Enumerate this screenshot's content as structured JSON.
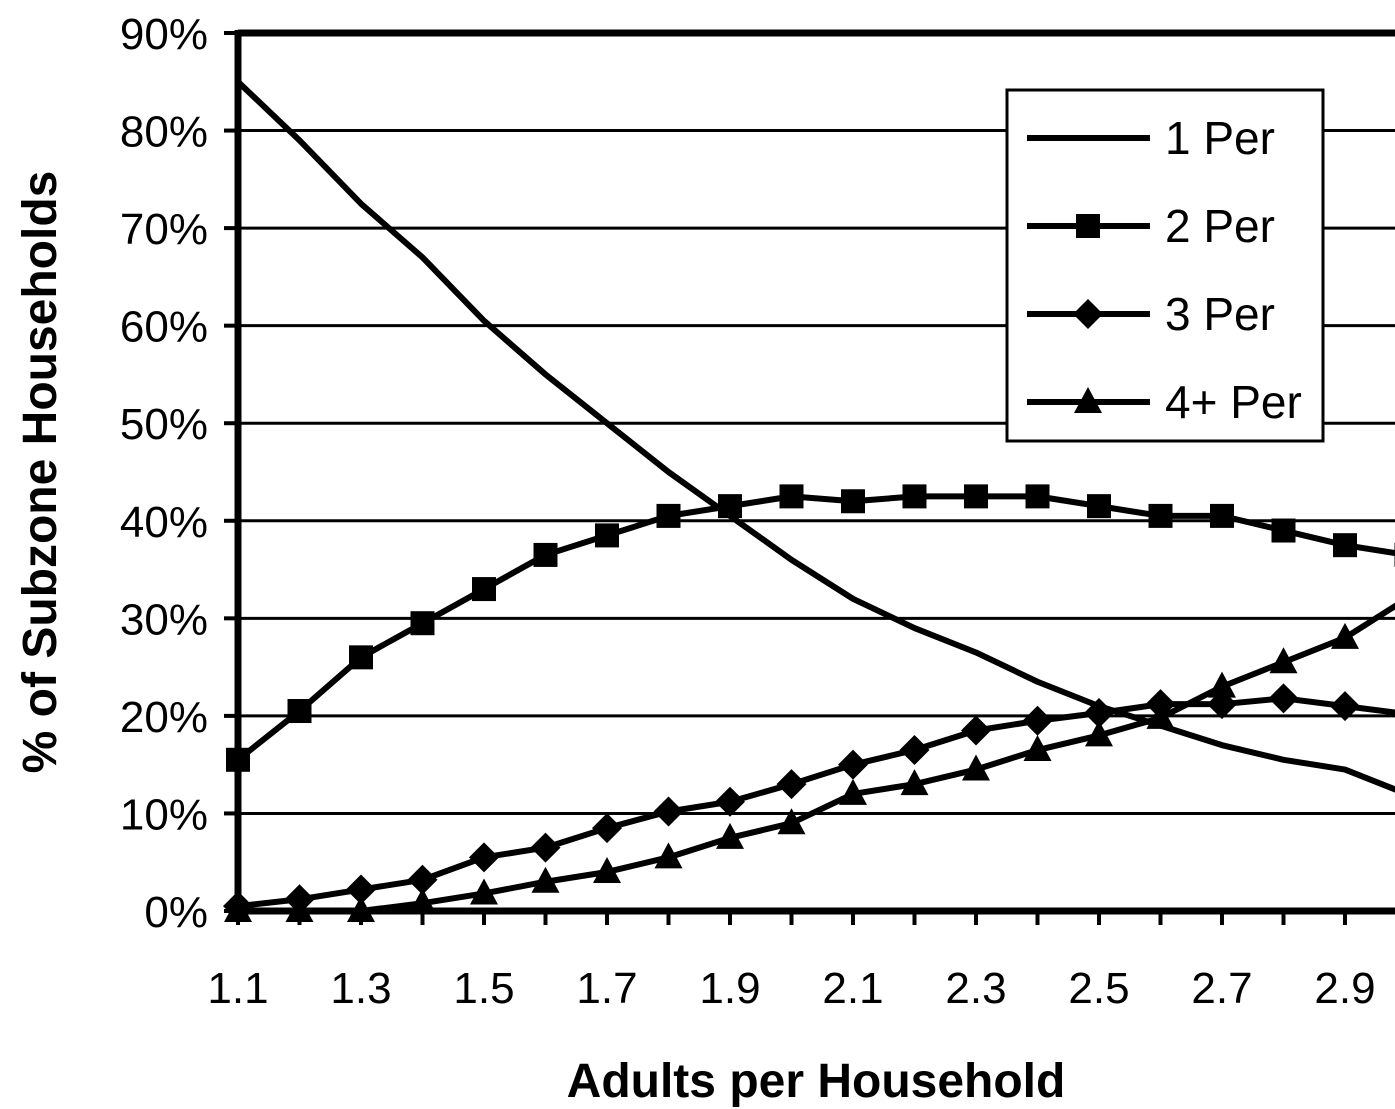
{
  "chart_data": {
    "type": "line",
    "title": "",
    "xlabel": "Adults per Household",
    "ylabel": "% of Subzone Households",
    "x": [
      1.1,
      1.2,
      1.3,
      1.4,
      1.5,
      1.6,
      1.7,
      1.8,
      1.9,
      2.0,
      2.1,
      2.2,
      2.3,
      2.4,
      2.5,
      2.6,
      2.7,
      2.8,
      2.9,
      3.0
    ],
    "x_tick_labels": [
      "1.1",
      "1.3",
      "1.5",
      "1.7",
      "1.9",
      "2.1",
      "2.3",
      "2.5",
      "2.7",
      "2.9"
    ],
    "y_tick_labels": [
      "0%",
      "10%",
      "20%",
      "30%",
      "40%",
      "50%",
      "60%",
      "70%",
      "80%",
      "90%"
    ],
    "ylim": [
      0,
      90
    ],
    "y_unit": "%",
    "grid": "horizontal",
    "legend_position": "top-right",
    "series": [
      {
        "name": "1 Per",
        "marker": "none",
        "values": [
          85,
          79,
          72.5,
          67,
          60.5,
          55,
          50,
          45,
          40.5,
          36,
          32,
          29,
          26.5,
          23.5,
          21,
          19,
          17,
          15.5,
          14.5,
          12
        ]
      },
      {
        "name": "2 Per",
        "marker": "square",
        "values": [
          15.5,
          20.5,
          26,
          29.5,
          33,
          36.5,
          38.5,
          40.5,
          41.5,
          42.5,
          42,
          42.5,
          42.5,
          42.5,
          41.5,
          40.5,
          40.5,
          39,
          37.5,
          36.5
        ]
      },
      {
        "name": "3 Per",
        "marker": "diamond",
        "values": [
          0.5,
          1.2,
          2.2,
          3.2,
          5.5,
          6.5,
          8.5,
          10.2,
          11.2,
          13,
          15,
          16.5,
          18.5,
          19.5,
          20.3,
          21.2,
          21.2,
          21.8,
          21,
          20.2
        ]
      },
      {
        "name": "4+ Per",
        "marker": "triangle",
        "values": [
          0,
          0,
          0,
          0.8,
          1.8,
          3,
          4,
          5.5,
          7.5,
          9,
          12,
          13,
          14.5,
          16.5,
          18,
          19.8,
          23,
          25.5,
          28,
          32
        ]
      }
    ]
  }
}
